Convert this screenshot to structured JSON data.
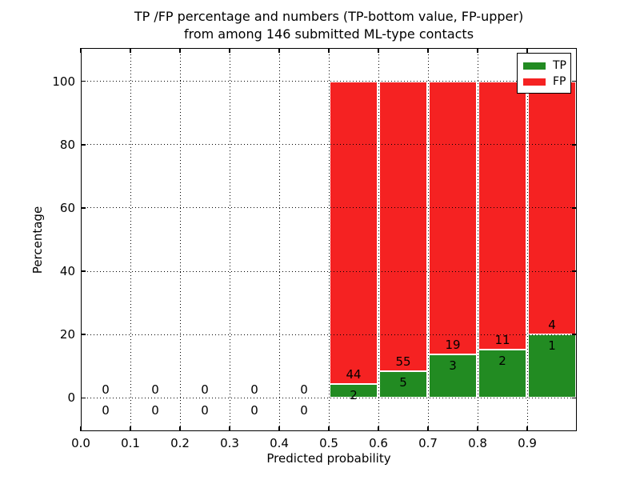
{
  "title": {
    "line1": "TP /FP percentage and numbers (TP-bottom value, FP-upper)",
    "line2": "from among 146 submitted ML-type contacts"
  },
  "axes": {
    "xlabel": "Predicted probability",
    "ylabel": "Percentage",
    "xtick_labels": [
      "0.0",
      "0.1",
      "0.2",
      "0.3",
      "0.4",
      "0.5",
      "0.6",
      "0.7",
      "0.8",
      "0.9"
    ],
    "xtick_values": [
      0.0,
      0.1,
      0.2,
      0.3,
      0.4,
      0.5,
      0.6,
      0.7,
      0.8,
      0.9
    ],
    "ytick_labels": [
      "0",
      "20",
      "40",
      "60",
      "80",
      "100"
    ],
    "ytick_values": [
      0,
      20,
      40,
      60,
      80,
      100
    ]
  },
  "legend": {
    "items": [
      {
        "label": "TP",
        "color": "#228b22"
      },
      {
        "label": "FP",
        "color": "#f52222"
      }
    ]
  },
  "chart_data": {
    "type": "bar",
    "stacked": true,
    "normalized_total_pct": 100,
    "title": "TP /FP percentage and numbers (TP-bottom value, FP-upper) from among 146 submitted ML-type contacts",
    "xlabel": "Predicted probability",
    "ylabel": "Percentage",
    "xlim": [
      0.0,
      1.0
    ],
    "ylim": [
      -10.5,
      110.5
    ],
    "grid": true,
    "grid_style": "dotted",
    "legend_position": "upper right",
    "bin_width": 0.1,
    "bin_starts": [
      0.0,
      0.1,
      0.2,
      0.3,
      0.4,
      0.5,
      0.6,
      0.7,
      0.8,
      0.9
    ],
    "series": [
      {
        "name": "TP",
        "color": "#228b22",
        "counts": [
          0,
          0,
          0,
          0,
          0,
          2,
          5,
          3,
          2,
          1
        ]
      },
      {
        "name": "FP",
        "color": "#f52222",
        "counts": [
          0,
          0,
          0,
          0,
          0,
          44,
          55,
          19,
          11,
          4
        ]
      }
    ],
    "tp_percent_by_bin": [
      null,
      null,
      null,
      null,
      null,
      4.35,
      8.33,
      13.64,
      15.38,
      20.0
    ],
    "total_contacts": 146,
    "annotation_note": "TP count shown at bottom of each bar, FP count above it; empty bins show 0 / 0"
  }
}
